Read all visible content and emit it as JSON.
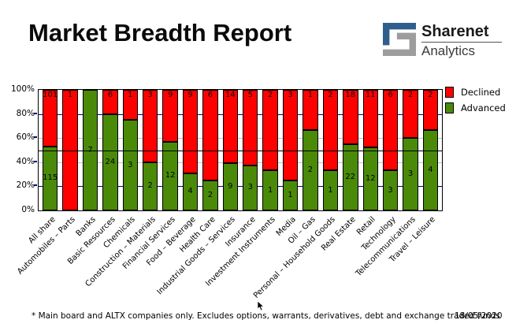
{
  "header": {
    "title": "Market Breadth Report",
    "logo": {
      "name": "Sharenet",
      "sub": "Analytics"
    }
  },
  "chart_data": {
    "type": "bar",
    "stacked": true,
    "orientation": "vertical",
    "title": "Market Breadth Report",
    "categories": [
      "All share",
      "Automobiles – Parts",
      "Banks",
      "Basic Resources",
      "Chemicals",
      "Construction – Materials",
      "Financial Services",
      "Food – Beverage",
      "Health Care",
      "Industrial Goods – Services",
      "Insurance",
      "Investment Instruments",
      "Media",
      "Oil – Gas",
      "Personal – Household Goods",
      "Real Estate",
      "Retail",
      "Technology",
      "Telecommunications",
      "Travel – Leisure"
    ],
    "series": [
      {
        "name": "Declined",
        "color": "#FF0000",
        "values": [
          101,
          1,
          0,
          6,
          1,
          3,
          9,
          9,
          6,
          14,
          5,
          2,
          3,
          1,
          2,
          18,
          11,
          6,
          2,
          2
        ]
      },
      {
        "name": "Advanced",
        "color": "#4A8A08",
        "values": [
          115,
          0,
          7,
          24,
          3,
          2,
          12,
          4,
          2,
          9,
          3,
          1,
          1,
          2,
          1,
          22,
          12,
          3,
          3,
          4
        ]
      }
    ],
    "y_ticks": [
      "100%",
      "80%",
      "60%",
      "40%",
      "20%",
      "0%"
    ],
    "ylim": [
      0,
      100
    ],
    "units": "percent of sector constituents",
    "reference_line_percent": 50,
    "grid": "dashed lines at 20/40/60/80, solid black line at 50",
    "legend_position": "top-right",
    "legend": [
      "Declined",
      "Advanced"
    ]
  },
  "colors": {
    "declined": "#FF0000",
    "advanced": "#4A8A08",
    "grid_navy": "#000080",
    "grid_silver": "#C4C4C4",
    "reference_line": "#000000",
    "logo_blue": "#2E5F8C",
    "logo_gray": "#9D9D9D"
  },
  "footer": {
    "note": "* Main board and ALTX companies only. Excludes options, warrants, derivatives, debt and exchange traded funds",
    "date": "18/05/2020"
  }
}
